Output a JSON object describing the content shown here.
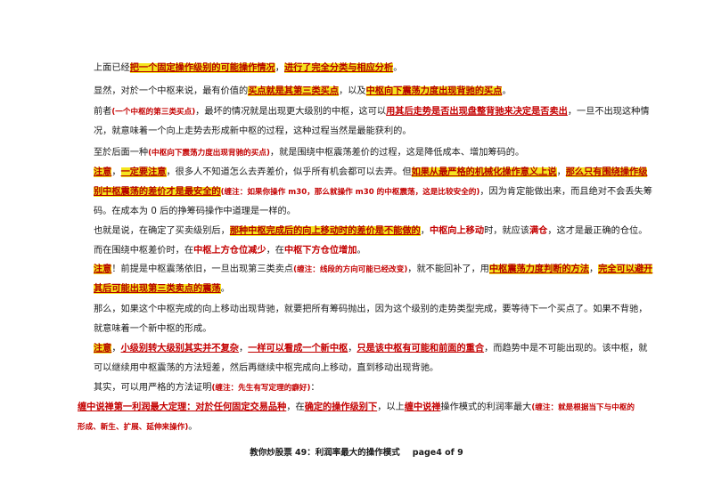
{
  "paragraphs": {
    "p1": {
      "t1": "上面已经",
      "h1": "把一个固定操作级别的可能操作情况",
      "t2": "，",
      "h2": "进行了完全分类与相应分析",
      "t3": "。"
    },
    "p2": {
      "t1": "显然，对於一个中枢来说，最有价值的",
      "h1": "买点就是其第三类买点",
      "t2": "，以及",
      "h2": "中枢向下震荡力度出现背驰的买点",
      "t3": "。"
    },
    "p3": {
      "t1": "前者",
      "n1": "(一个中枢的第三类买点)",
      "t2": "，最坏的情况就是出现更大级别的中枢，这可以",
      "r1": "用其后走势是否出现盘整背驰来决定是否卖出",
      "t3": "，一旦不出现这种情况，就意味着一个向上走势去形成新中枢的过程，这种过程当然是最能获利的。"
    },
    "p4": {
      "t1": "至於后面一种",
      "n1": "(中枢向下震荡力度出现背驰的买点)",
      "t2": "，就是围绕中枢震荡差价的过程，这是降低成本、增加筹码的。"
    },
    "p5": {
      "h1": "注意",
      "t1": "，",
      "h2": "一定要注意",
      "t2": "，很多人不知道怎么去弄差价，似乎所有机会都可以去弄。但",
      "h3": "如果从最严格的机械化操作意义上说",
      "t3": "，",
      "h4": "那么只有围绕操作级别中枢震荡的差价才是最安全的",
      "n1": "(缠注：如果你操作 m30，那么就操作 m30 的中枢震荡，这是比较安全的)",
      "t4": "，因为肯定能做出来，而且绝对不会丢失筹码。在成本为 0 后的挣筹码操作中道理是一样的。"
    },
    "p6": {
      "t1": "也就是说，在确定了买卖级别后，",
      "h1": "那种中枢完成后的向上移动时的差价是不能做的",
      "t2": "，",
      "r1": "中枢向上移动",
      "t3": "时，就应该",
      "r2": "满仓",
      "t4": "，这才是最正确的仓位。而在围绕中枢差价时，在",
      "r3": "中枢上方仓位减少",
      "t5": "，在",
      "r4": "中枢下方仓位增加",
      "t6": "。"
    },
    "p7": {
      "h1": "注意",
      "t1": "！前提是中枢震荡依旧，一旦出现第三类卖点",
      "n1": "(缠注：线段的方向可能已经改变)",
      "t2": "，就不能回补了，用",
      "h2": "中枢震荡力度判断的方法",
      "t3": "，",
      "h3": "完全可以避开其后可能出现第三类卖点的震荡",
      "t4": "。"
    },
    "p8": {
      "t1": "那么，如果这个中枢完成的向上移动出现背驰，就要把所有筹码抛出，因为这个级别的走势类型完成，要等待下一个买点了。如果不背驰，就意味着一个新中枢的形成。"
    },
    "p9": {
      "h1": "注意",
      "t1": "，",
      "r1": "小级别转大级别其实并不复杂",
      "t2": "，",
      "r2": "一样可以看成一个新中枢",
      "t3": "，",
      "r3": "只是该中枢有可能和前面的重合",
      "t4": "，而趋势中是不可能出现的。该中枢，就可以继续用中枢震荡的方法短差，然后再继续中枢完成向上移动，直到移动出现背驰。"
    },
    "p10": {
      "t1": "其实，可以用严格的方法证明",
      "n1": "(缠注：先生有写定理的癖好)",
      "t2": "："
    },
    "p11": {
      "r1": "缠中说禅第一利润最大定理：对於任何固定交易品种",
      "t1": "，在",
      "r2": "确定的操作级别下",
      "t2": "，以上",
      "r3": "缠中说禅",
      "t3": "操作模式的利润率最大",
      "n1": "(缠注：就是根据当下与中枢的形成、新生、扩展、延伸来操作)",
      "t4": "。"
    }
  },
  "footer": {
    "title": "教你炒股票 49：利润率最大的操作模式",
    "page": "page4 of 9"
  },
  "colors": {
    "highlight": "#f5e51e",
    "red_text": "#c40000"
  }
}
